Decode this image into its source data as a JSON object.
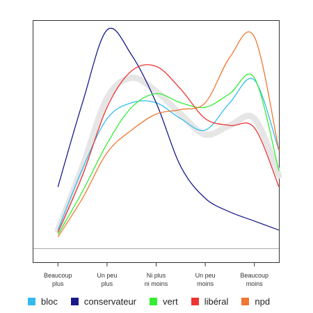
{
  "chart_data": {
    "type": "line",
    "title": "",
    "xlabel": "",
    "ylabel": "",
    "categories": [
      [
        "Beaucoup",
        "plus"
      ],
      [
        "Un peu",
        "plus"
      ],
      [
        "Ni plus",
        "ni moins"
      ],
      [
        "Un peu",
        "moins"
      ],
      [
        "Beaucoup",
        "moins"
      ]
    ],
    "grid": false,
    "legend_position": "bottom",
    "series": [
      {
        "name": "bloc",
        "color": "#33bbee",
        "points": [
          [
            0.0,
            0.08
          ],
          [
            0.5,
            0.35
          ],
          [
            1.0,
            0.57
          ],
          [
            1.5,
            0.64
          ],
          [
            2.0,
            0.64
          ],
          [
            2.5,
            0.57
          ],
          [
            3.0,
            0.52
          ],
          [
            3.5,
            0.64
          ],
          [
            4.0,
            0.74
          ],
          [
            4.5,
            0.43
          ]
        ]
      },
      {
        "name": "conservateur",
        "color": "#1a1a8a",
        "points": [
          [
            0.0,
            0.27
          ],
          [
            0.5,
            0.64
          ],
          [
            1.0,
            0.96
          ],
          [
            1.5,
            0.85
          ],
          [
            2.0,
            0.64
          ],
          [
            2.5,
            0.36
          ],
          [
            3.0,
            0.22
          ],
          [
            3.5,
            0.16
          ],
          [
            4.0,
            0.12
          ],
          [
            4.5,
            0.08
          ]
        ]
      },
      {
        "name": "vert",
        "color": "#33ee33",
        "points": [
          [
            0.0,
            0.06
          ],
          [
            0.5,
            0.25
          ],
          [
            1.0,
            0.46
          ],
          [
            1.5,
            0.62
          ],
          [
            2.0,
            0.68
          ],
          [
            2.5,
            0.64
          ],
          [
            3.0,
            0.62
          ],
          [
            3.5,
            0.68
          ],
          [
            4.0,
            0.75
          ],
          [
            4.5,
            0.34
          ]
        ]
      },
      {
        "name": "libéral",
        "color": "#ee3333",
        "points": [
          [
            0.0,
            0.07
          ],
          [
            0.5,
            0.32
          ],
          [
            1.0,
            0.62
          ],
          [
            1.5,
            0.78
          ],
          [
            2.0,
            0.8
          ],
          [
            2.5,
            0.7
          ],
          [
            3.0,
            0.57
          ],
          [
            3.5,
            0.54
          ],
          [
            4.0,
            0.53
          ],
          [
            4.5,
            0.27
          ]
        ]
      },
      {
        "name": "npd",
        "color": "#ee7733",
        "points": [
          [
            0.0,
            0.05
          ],
          [
            0.5,
            0.22
          ],
          [
            1.0,
            0.42
          ],
          [
            1.5,
            0.52
          ],
          [
            2.0,
            0.59
          ],
          [
            2.5,
            0.61
          ],
          [
            3.0,
            0.64
          ],
          [
            3.5,
            0.84
          ],
          [
            4.0,
            0.93
          ],
          [
            4.5,
            0.43
          ]
        ]
      }
    ],
    "reference_curve": {
      "color": "#e6e6e6",
      "points": [
        [
          0.0,
          0.08
        ],
        [
          0.5,
          0.36
        ],
        [
          1.0,
          0.66
        ],
        [
          1.5,
          0.75
        ],
        [
          2.0,
          0.69
        ],
        [
          2.5,
          0.59
        ],
        [
          3.0,
          0.5
        ],
        [
          3.5,
          0.54
        ],
        [
          4.0,
          0.57
        ],
        [
          4.5,
          0.32
        ]
      ]
    }
  }
}
